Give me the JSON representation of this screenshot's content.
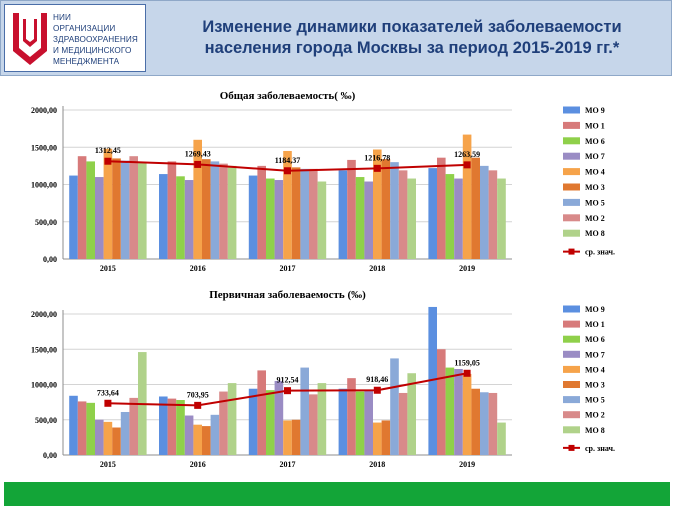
{
  "header": {
    "logo_lines": [
      "НИИ",
      "ОРГАНИЗАЦИИ",
      "ЗДРАВООХРАНЕНИЯ",
      "И МЕДИЦИНСКОГО",
      "МЕНЕДЖМЕНТА"
    ],
    "title_lines": [
      "Изменение динамики показателей заболеваемости",
      "населения города Москвы за период 2015-2019 гг.*"
    ]
  },
  "colors": {
    "header_bg": "#c6d6ea",
    "title_text": "#1f3f7a",
    "logo_red": "#c8102e",
    "footer_green": "#13a538",
    "avg_line": "#c00000"
  },
  "chart_data": [
    {
      "type": "bar",
      "title": "Общая заболеваемость( ‰)",
      "xlabel": "",
      "ylabel": "",
      "categories": [
        "2015",
        "2016",
        "2017",
        "2018",
        "2019"
      ],
      "ylim": [
        0,
        2000
      ],
      "yticks": [
        "0,00",
        "500,00",
        "1000,00",
        "1500,00",
        "2000,00"
      ],
      "grid": true,
      "legend": "right",
      "series": [
        {
          "name": "МО 9",
          "color": "#5b8fe0",
          "values": [
            1120,
            1140,
            1120,
            1190,
            1220
          ]
        },
        {
          "name": "МО 1",
          "color": "#d77a7a",
          "values": [
            1380,
            1310,
            1250,
            1330,
            1360
          ]
        },
        {
          "name": "МО 6",
          "color": "#8fd04a",
          "values": [
            1310,
            1110,
            1080,
            1100,
            1140
          ]
        },
        {
          "name": "МО 7",
          "color": "#9a8cc4",
          "values": [
            1100,
            1060,
            1060,
            1040,
            1080
          ]
        },
        {
          "name": "МО 4",
          "color": "#f6a34a",
          "values": [
            1480,
            1600,
            1450,
            1470,
            1670
          ]
        },
        {
          "name": "МО 3",
          "color": "#e07830",
          "values": [
            1350,
            1340,
            1230,
            1340,
            1360
          ]
        },
        {
          "name": "МО 5",
          "color": "#8aa9d8",
          "values": [
            1320,
            1310,
            1210,
            1300,
            1250
          ]
        },
        {
          "name": "МО 2",
          "color": "#d88a8a",
          "values": [
            1380,
            1280,
            1210,
            1190,
            1190
          ]
        },
        {
          "name": "МО 8",
          "color": "#b0d28a",
          "values": [
            1290,
            1250,
            1040,
            1080,
            1080
          ]
        }
      ],
      "average": {
        "name": "ср. знач.",
        "values": [
          1312.45,
          1269.43,
          1184.37,
          1216.78,
          1263.59
        ],
        "labels": [
          "1312,45",
          "1269,43",
          "1184,37",
          "1216,78",
          "1263,59"
        ]
      }
    },
    {
      "type": "bar",
      "title": "Первичная заболеваемость (‰)",
      "xlabel": "",
      "ylabel": "",
      "categories": [
        "2015",
        "2016",
        "2017",
        "2018",
        "2019"
      ],
      "ylim": [
        0,
        2000
      ],
      "yticks": [
        "0,00",
        "500,00",
        "1000,00",
        "1500,00",
        "2000,00"
      ],
      "grid": true,
      "legend": "right",
      "series": [
        {
          "name": "МО 9",
          "color": "#5b8fe0",
          "values": [
            840,
            830,
            940,
            940,
            2100
          ]
        },
        {
          "name": "МО 1",
          "color": "#d77a7a",
          "values": [
            760,
            800,
            1200,
            1090,
            1500
          ]
        },
        {
          "name": "МО 6",
          "color": "#8fd04a",
          "values": [
            740,
            780,
            920,
            900,
            1240
          ]
        },
        {
          "name": "МО 7",
          "color": "#9a8cc4",
          "values": [
            500,
            560,
            1050,
            920,
            1220
          ]
        },
        {
          "name": "МО 4",
          "color": "#f6a34a",
          "values": [
            470,
            430,
            490,
            460,
            1150
          ]
        },
        {
          "name": "МО 3",
          "color": "#e07830",
          "values": [
            390,
            410,
            500,
            490,
            940
          ]
        },
        {
          "name": "МО 5",
          "color": "#8aa9d8",
          "values": [
            610,
            570,
            1240,
            1370,
            890
          ]
        },
        {
          "name": "МО 2",
          "color": "#d88a8a",
          "values": [
            810,
            900,
            860,
            880,
            880
          ]
        },
        {
          "name": "МО 8",
          "color": "#b0d28a",
          "values": [
            1460,
            1020,
            1020,
            1160,
            460
          ]
        }
      ],
      "average": {
        "name": "ср. знач.",
        "values": [
          733.64,
          703.95,
          912.54,
          918.46,
          1159.05
        ],
        "labels": [
          "733,64",
          "703,95",
          "912,54",
          "918,46",
          "1159,05"
        ]
      }
    }
  ]
}
